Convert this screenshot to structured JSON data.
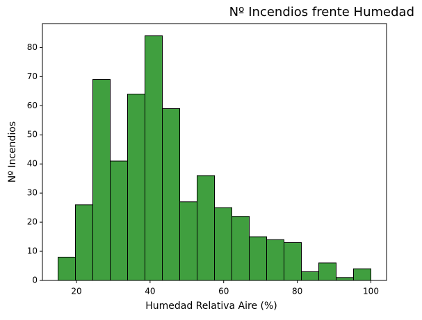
{
  "chart_data": {
    "type": "histogram",
    "title": "Nº Incendios frente Humedad",
    "xlabel": "Humedad Relativa Aire (%)",
    "ylabel": "Nº Incendios",
    "bins": [
      15,
      19.722,
      24.444,
      29.167,
      33.889,
      38.611,
      43.333,
      48.056,
      52.778,
      57.5,
      62.222,
      66.944,
      71.667,
      76.389,
      81.111,
      85.833,
      90.556,
      95.278,
      100
    ],
    "values": [
      8,
      26,
      69,
      41,
      64,
      84,
      59,
      27,
      36,
      25,
      22,
      15,
      14,
      13,
      3,
      6,
      1,
      4
    ],
    "color": "#409f3f",
    "edgecolor": "#000000",
    "xlim": [
      10.75,
      104.25
    ],
    "xticks": [
      20,
      40,
      60,
      80,
      100
    ],
    "ylim": [
      0,
      88.2
    ],
    "yticks": [
      0,
      10,
      20,
      30,
      40,
      50,
      60,
      70,
      80
    ]
  }
}
